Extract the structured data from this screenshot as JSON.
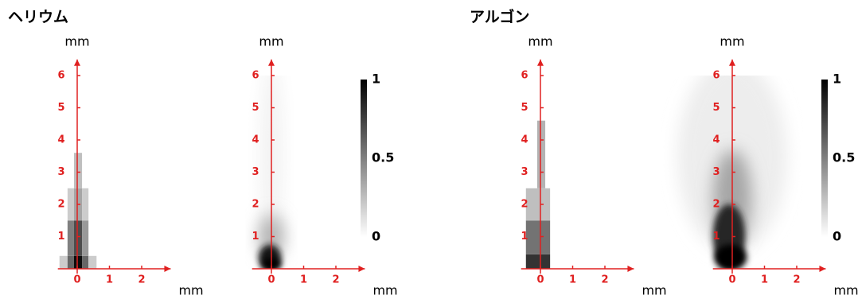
{
  "chart_data": [
    {
      "type": "heatmap",
      "title": "ヘリウム",
      "xlabel": "mm",
      "ylabel": "mm",
      "color": "#e02020",
      "xlim": [
        -0.6,
        2.9
      ],
      "ylim": [
        -0.15,
        6.5
      ],
      "xticks": [
        0,
        1,
        2
      ],
      "yticks": [
        1,
        2,
        3,
        4,
        5,
        6
      ],
      "cells": [
        {
          "x": [
            -0.55,
            -0.3
          ],
          "y": [
            0,
            0.4
          ],
          "value": 0.2
        },
        {
          "x": [
            -0.3,
            -0.1
          ],
          "y": [
            0,
            0.4
          ],
          "value": 0.6
        },
        {
          "x": [
            -0.1,
            0.15
          ],
          "y": [
            0,
            0.4
          ],
          "value": 0.95
        },
        {
          "x": [
            0.15,
            0.35
          ],
          "y": [
            0,
            0.4
          ],
          "value": 0.6
        },
        {
          "x": [
            0.35,
            0.6
          ],
          "y": [
            0,
            0.4
          ],
          "value": 0.2
        },
        {
          "x": [
            -0.3,
            -0.1
          ],
          "y": [
            0.4,
            1.5
          ],
          "value": 0.5
        },
        {
          "x": [
            -0.1,
            0.15
          ],
          "y": [
            0.4,
            1.5
          ],
          "value": 0.7
        },
        {
          "x": [
            0.15,
            0.35
          ],
          "y": [
            0.4,
            1.5
          ],
          "value": 0.4
        },
        {
          "x": [
            -0.3,
            -0.1
          ],
          "y": [
            1.5,
            2.5
          ],
          "value": 0.2
        },
        {
          "x": [
            -0.1,
            0.15
          ],
          "y": [
            1.5,
            2.5
          ],
          "value": 0.35
        },
        {
          "x": [
            0.15,
            0.35
          ],
          "y": [
            1.5,
            2.5
          ],
          "value": 0.2
        },
        {
          "x": [
            -0.1,
            0.15
          ],
          "y": [
            2.5,
            3.6
          ],
          "value": 0.25
        }
      ]
    },
    {
      "type": "density",
      "xlabel": "mm",
      "ylabel": "mm",
      "color": "#e02020",
      "xlim": [
        -0.6,
        2.9
      ],
      "ylim": [
        -0.15,
        6.5
      ],
      "xticks": [
        0,
        1,
        2
      ],
      "yticks": [
        1,
        2,
        3,
        4,
        5,
        6
      ],
      "clim": [
        0,
        1
      ],
      "cticks": [
        0,
        0.5,
        1
      ]
    },
    {
      "type": "heatmap",
      "title": "アルゴン",
      "xlabel": "mm",
      "ylabel": "mm",
      "color": "#e02020",
      "xlim": [
        -0.6,
        2.9
      ],
      "ylim": [
        -0.15,
        6.5
      ],
      "xticks": [
        0,
        1,
        2
      ],
      "yticks": [
        1,
        2,
        3,
        4,
        5,
        6
      ],
      "cells": [
        {
          "x": [
            -0.45,
            0.3
          ],
          "y": [
            0,
            0.45
          ],
          "value": 0.8
        },
        {
          "x": [
            -0.45,
            0.3
          ],
          "y": [
            0.45,
            1.5
          ],
          "value": 0.55
        },
        {
          "x": [
            -0.45,
            0.3
          ],
          "y": [
            1.5,
            2.5
          ],
          "value": 0.25
        },
        {
          "x": [
            -0.1,
            0.15
          ],
          "y": [
            2.5,
            4.6
          ],
          "value": 0.3
        }
      ]
    },
    {
      "type": "density",
      "xlabel": "mm",
      "ylabel": "mm",
      "color": "#e02020",
      "xlim": [
        -0.6,
        2.9
      ],
      "ylim": [
        -0.15,
        6.5
      ],
      "xticks": [
        0,
        1,
        2
      ],
      "yticks": [
        1,
        2,
        3,
        4,
        5,
        6
      ],
      "clim": [
        0,
        1
      ],
      "cticks": [
        0,
        0.5,
        1
      ]
    }
  ]
}
